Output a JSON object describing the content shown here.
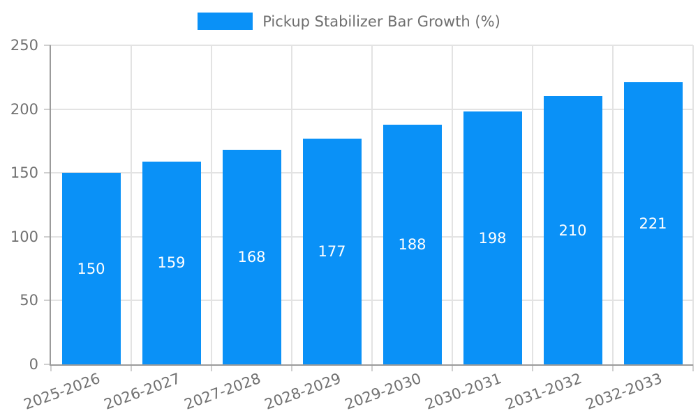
{
  "chart_data": {
    "type": "bar",
    "title": "Pickup Stabilizer Bar Growth (%)",
    "categories": [
      "2025-2026",
      "2026-2027",
      "2027-2028",
      "2028-2029",
      "2029-2030",
      "2030-2031",
      "2031-2032",
      "2032-2033"
    ],
    "values": [
      150,
      159,
      168,
      177,
      188,
      198,
      210,
      221
    ],
    "value_labels": [
      "150",
      "159",
      "168",
      "177",
      "188",
      "198",
      "210",
      "221"
    ],
    "xlabel": "",
    "ylabel": "",
    "ylim": [
      0,
      250
    ],
    "yticks": [
      0,
      50,
      100,
      150,
      200,
      250
    ],
    "grid": true,
    "legend_position": "top-center",
    "colors": {
      "bar": "#0a91f7",
      "bar_value_text": "#ffffff",
      "grid": "#e3e3e3",
      "axis": "#9b9b9b",
      "tick_mark": "#cfcfcf",
      "tick_text": "#717171",
      "legend_text": "#6f6f6f",
      "background": "#ffffff"
    }
  }
}
